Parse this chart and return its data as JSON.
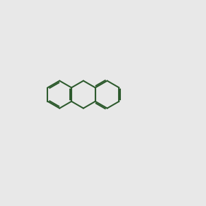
{
  "bg_color": "#e8e8e8",
  "bond_color": "#2d5a2d",
  "N_color": "#0000cc",
  "O_color": "#cc0000",
  "C_color": "#2d5a2d",
  "lw": 1.5,
  "lw_double": 1.5
}
